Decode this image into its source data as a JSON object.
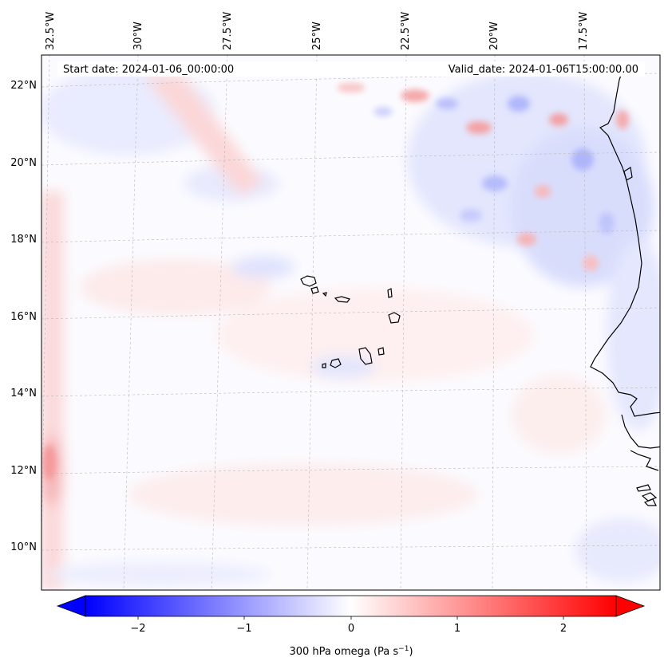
{
  "map": {
    "start_label": "Start date: 2024-01-06_00:00:00",
    "valid_label": "Valid_date: 2024-01-06T15:00:00.00",
    "top_lon_labels": [
      "32.5°W",
      "30°W",
      "27.5°W",
      "25°W",
      "22.5°W",
      "20°W",
      "17.5°W"
    ],
    "left_lat_labels": [
      "22°N",
      "20°N",
      "18°N",
      "16°N",
      "14°N",
      "12°N",
      "10°N"
    ]
  },
  "colorbar": {
    "label_text": "300 hPa omega (Pa s",
    "label_sup": "−1",
    "label_tail": ")",
    "ticks": [
      "−2",
      "−1",
      "0",
      "1",
      "2"
    ],
    "colors": {
      "negative": "#0000ff",
      "zero": "#ffffff",
      "positive": "#ff0000"
    }
  }
}
